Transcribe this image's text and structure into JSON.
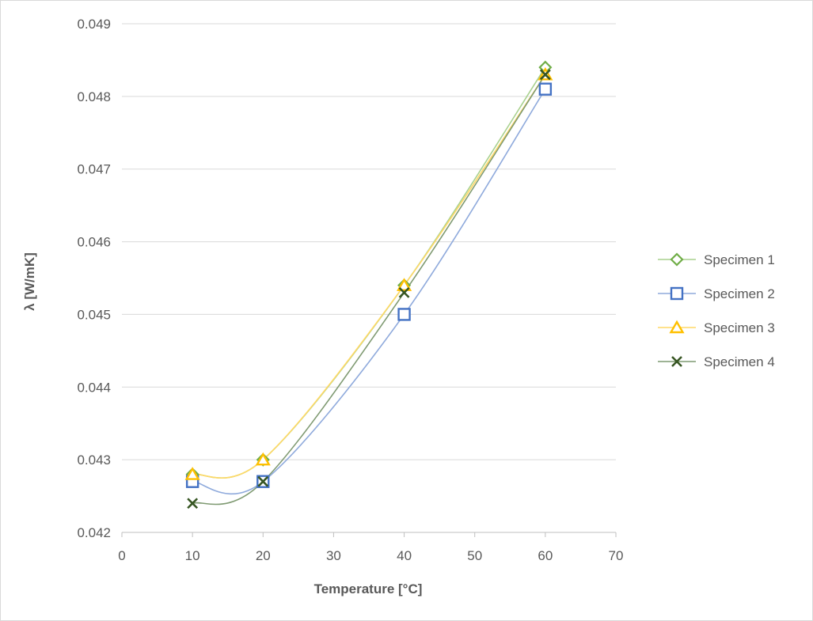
{
  "chart_data": {
    "type": "scatter",
    "xlabel": "Temperature [°C]",
    "ylabel": "λ [W/mK]",
    "xlim": [
      0,
      70
    ],
    "ylim": [
      0.042,
      0.049
    ],
    "x_ticks": [
      "0",
      "10",
      "20",
      "30",
      "40",
      "50",
      "60",
      "70"
    ],
    "y_ticks": [
      "0.042",
      "0.043",
      "0.044",
      "0.045",
      "0.046",
      "0.047",
      "0.048",
      "0.049"
    ],
    "grid": "horizontal",
    "legend_position": "right",
    "smooth_lines": true,
    "series": [
      {
        "name": "Specimen 1",
        "marker": "diamond",
        "color": "#70ad47",
        "line_color": "#a9d18e",
        "points": [
          [
            10,
            0.0428
          ],
          [
            20,
            0.043
          ],
          [
            40,
            0.0454
          ],
          [
            60,
            0.0484
          ]
        ]
      },
      {
        "name": "Specimen 2",
        "marker": "square",
        "color": "#4472c4",
        "line_color": "#8faadc",
        "points": [
          [
            10,
            0.0427
          ],
          [
            20,
            0.0427
          ],
          [
            40,
            0.045
          ],
          [
            60,
            0.0481
          ]
        ]
      },
      {
        "name": "Specimen 3",
        "marker": "triangle",
        "color": "#ffc000",
        "line_color": "#ffd966",
        "points": [
          [
            10,
            0.0428
          ],
          [
            20,
            0.043
          ],
          [
            40,
            0.0454
          ],
          [
            60,
            0.0483
          ]
        ]
      },
      {
        "name": "Specimen 4",
        "marker": "x",
        "color": "#375623",
        "line_color": "#7f9a72",
        "points": [
          [
            10,
            0.0424
          ],
          [
            20,
            0.0427
          ],
          [
            40,
            0.0453
          ],
          [
            60,
            0.0483
          ]
        ]
      }
    ]
  }
}
